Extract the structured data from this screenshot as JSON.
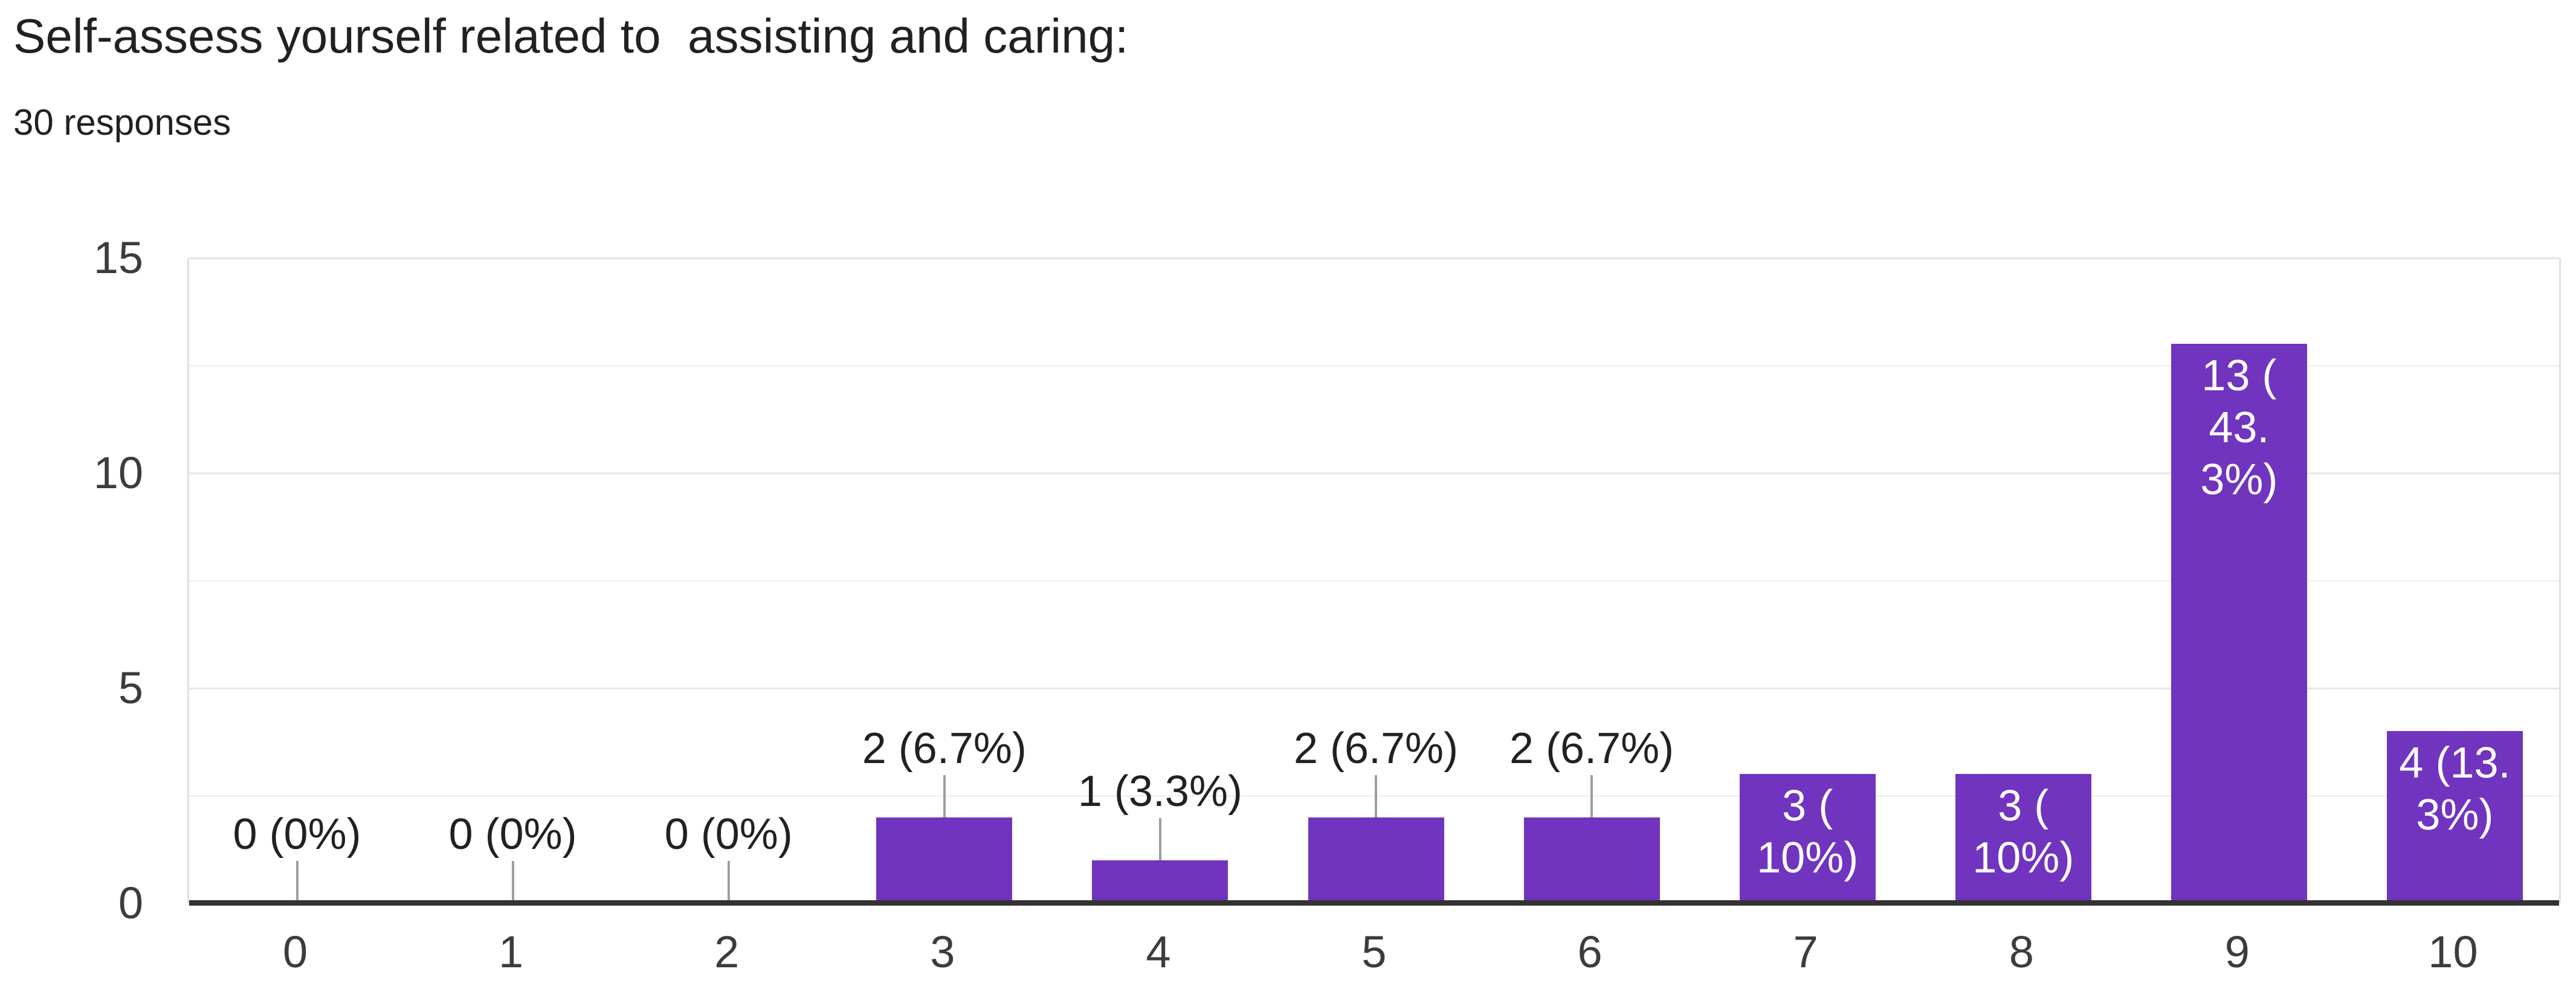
{
  "header": {
    "title": "Self-assess yourself related to  assisting and caring:",
    "responses": "30 responses"
  },
  "chart_data": {
    "type": "bar",
    "title": "Self-assess yourself related to  assisting and caring:",
    "subtitle": "30 responses",
    "xlabel": "",
    "ylabel": "",
    "ylim": [
      0,
      15
    ],
    "yticks": [
      0,
      5,
      10,
      15
    ],
    "minor_gridlines": [
      2.5,
      7.5,
      12.5
    ],
    "grid": true,
    "legend": "none",
    "categories": [
      "0",
      "1",
      "2",
      "3",
      "4",
      "5",
      "6",
      "7",
      "8",
      "9",
      "10"
    ],
    "values": [
      0,
      0,
      0,
      2,
      1,
      2,
      2,
      3,
      3,
      13,
      4
    ],
    "bars": [
      {
        "category": "0",
        "value": 0,
        "label": "0 (0%)",
        "label_lines": [
          "0 (0%)"
        ],
        "label_placement": "outside"
      },
      {
        "category": "1",
        "value": 0,
        "label": "0 (0%)",
        "label_lines": [
          "0 (0%)"
        ],
        "label_placement": "outside"
      },
      {
        "category": "2",
        "value": 0,
        "label": "0 (0%)",
        "label_lines": [
          "0 (0%)"
        ],
        "label_placement": "outside"
      },
      {
        "category": "3",
        "value": 2,
        "label": "2 (6.7%)",
        "label_lines": [
          "2 (6.7%)"
        ],
        "label_placement": "outside"
      },
      {
        "category": "4",
        "value": 1,
        "label": "1 (3.3%)",
        "label_lines": [
          "1 (3.3%)"
        ],
        "label_placement": "outside"
      },
      {
        "category": "5",
        "value": 2,
        "label": "2 (6.7%)",
        "label_lines": [
          "2 (6.7%)"
        ],
        "label_placement": "outside"
      },
      {
        "category": "6",
        "value": 2,
        "label": "2 (6.7%)",
        "label_lines": [
          "2 (6.7%)"
        ],
        "label_placement": "outside"
      },
      {
        "category": "7",
        "value": 3,
        "label": "3 (10%)",
        "label_lines": [
          "3 (",
          "10%)"
        ],
        "label_placement": "inside"
      },
      {
        "category": "8",
        "value": 3,
        "label": "3 (10%)",
        "label_lines": [
          "3 (",
          "10%)"
        ],
        "label_placement": "inside"
      },
      {
        "category": "9",
        "value": 13,
        "label": "13 (43.3%)",
        "label_lines": [
          "13 (",
          "43.",
          "3%)"
        ],
        "label_placement": "inside"
      },
      {
        "category": "10",
        "value": 4,
        "label": "4 (13.3%)",
        "label_lines": [
          "4 (13.",
          "3%)"
        ],
        "label_placement": "inside"
      }
    ],
    "colors": {
      "bar": "#7134bf",
      "annotation_outside": "#212121",
      "annotation_inside": "#ffffff",
      "stem": "#9e9e9e",
      "axis_label": "#3c3c3c",
      "gridline_major": "#e6e6e6",
      "gridline_minor": "#f2f2f2",
      "baseline": "#333333",
      "background": "#ffffff"
    }
  }
}
